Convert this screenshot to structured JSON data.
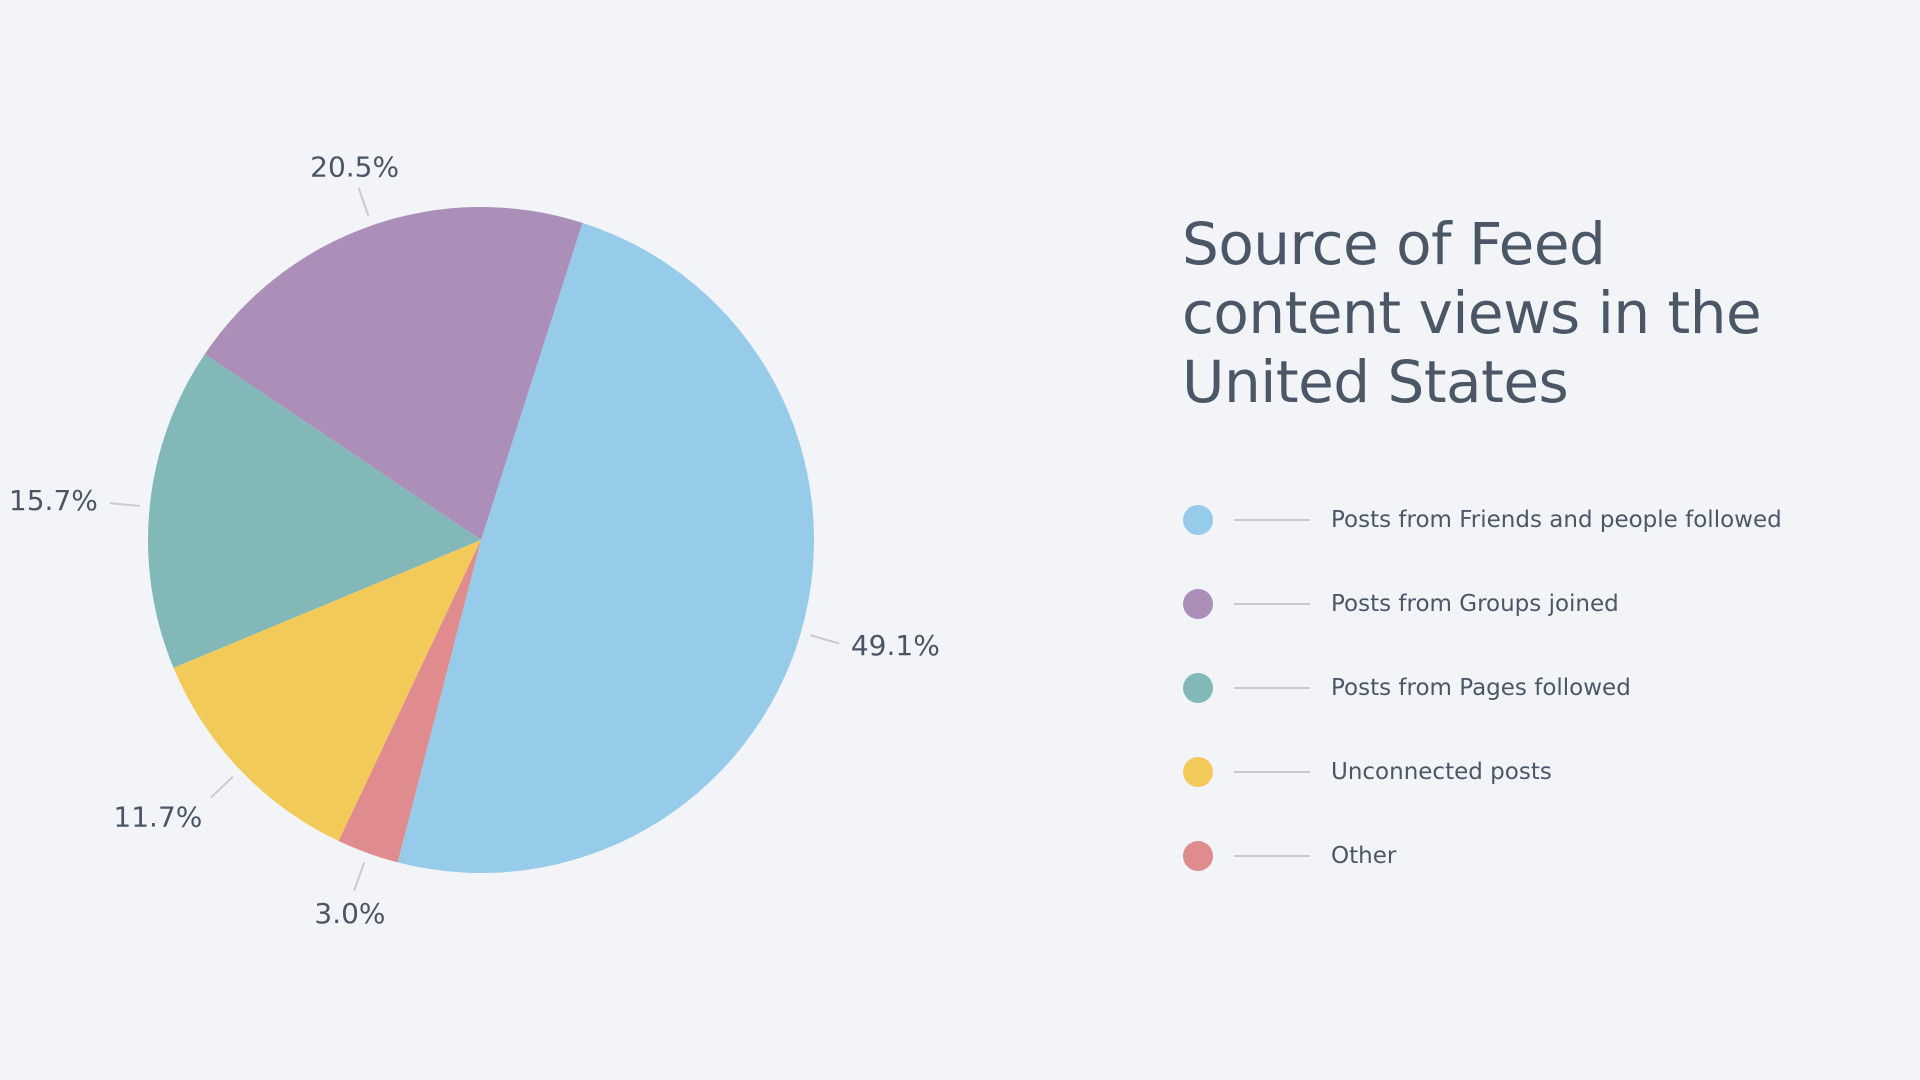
{
  "chart_data": {
    "type": "pie",
    "title": "Source of Feed content views in the United States",
    "slices": [
      {
        "name": "Posts from Friends and people followed",
        "value": 49.1,
        "label": "49.1%",
        "color": "#97cbea"
      },
      {
        "name": "Posts from Groups joined",
        "value": 20.5,
        "label": "20.5%",
        "color": "#ab8fb8"
      },
      {
        "name": "Posts from Pages followed",
        "value": 15.7,
        "label": "15.7%",
        "color": "#82b8b8"
      },
      {
        "name": "Unconnected posts",
        "value": 11.7,
        "label": "11.7%",
        "color": "#f2ca5a"
      },
      {
        "name": "Other",
        "value": 3.0,
        "label": "3.0%",
        "color": "#e08b8e"
      }
    ],
    "legend_position": "right"
  }
}
